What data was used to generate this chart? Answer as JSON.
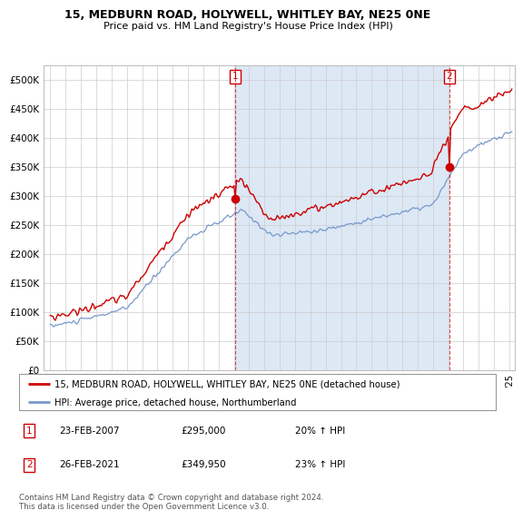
{
  "title": "15, MEDBURN ROAD, HOLYWELL, WHITLEY BAY, NE25 0NE",
  "subtitle": "Price paid vs. HM Land Registry's House Price Index (HPI)",
  "legend_label_red": "15, MEDBURN ROAD, HOLYWELL, WHITLEY BAY, NE25 0NE (detached house)",
  "legend_label_blue": "HPI: Average price, detached house, Northumberland",
  "sale1_date": "23-FEB-2007",
  "sale1_price": 295000,
  "sale1_hpi_pct": "20%",
  "sale2_date": "26-FEB-2021",
  "sale2_price": 349950,
  "sale2_hpi_pct": "23%",
  "footer": "Contains HM Land Registry data © Crown copyright and database right 2024.\nThis data is licensed under the Open Government Licence v3.0.",
  "red_color": "#cc0000",
  "blue_color": "#7799cc",
  "fill_color": "#dde8f5",
  "vline_color": "#cc0000",
  "background_color": "#ffffff",
  "grid_color": "#cccccc",
  "ylim": [
    0,
    520000
  ],
  "yticks": [
    0,
    50000,
    100000,
    150000,
    200000,
    250000,
    300000,
    350000,
    400000,
    450000,
    500000
  ],
  "ytick_labels": [
    "£0",
    "£50K",
    "£100K",
    "£150K",
    "£200K",
    "£250K",
    "£300K",
    "£350K",
    "£400K",
    "£450K",
    "£500K"
  ]
}
